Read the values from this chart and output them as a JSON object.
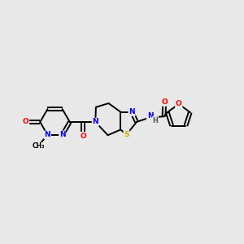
{
  "background_color": "#e8e8e8",
  "bond_color": "#000000",
  "atom_colors": {
    "N": "#0000ff",
    "O": "#ff0000",
    "S": "#ccaa00",
    "C": "#000000",
    "H": "#555555"
  },
  "figsize": [
    3.0,
    3.0
  ],
  "dpi": 100
}
